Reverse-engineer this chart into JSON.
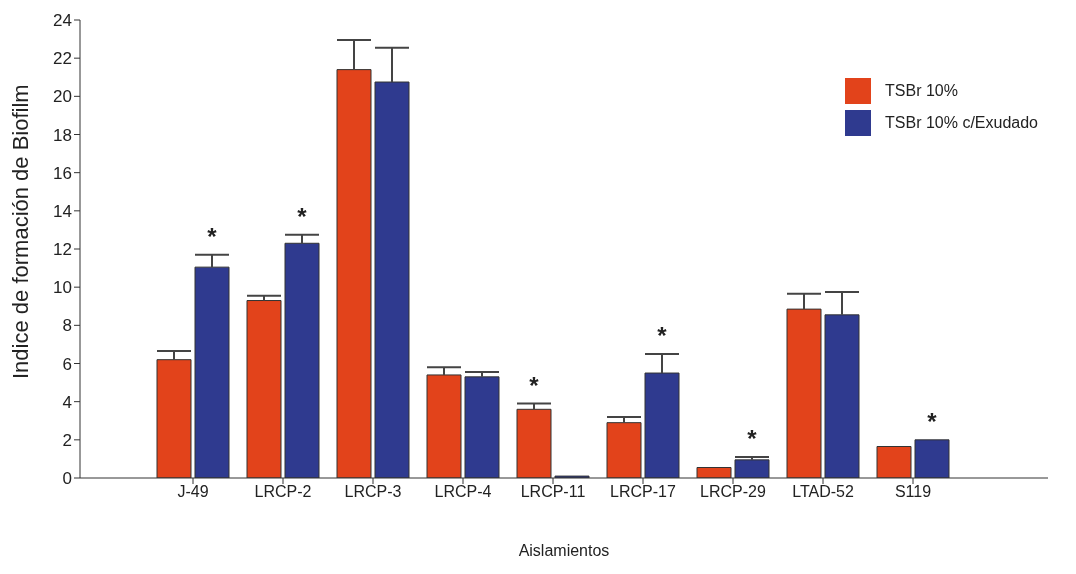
{
  "chart_data": {
    "type": "bar",
    "xlabel": "Aislamientos",
    "ylabel": "Indice de formación de Biofilm",
    "categories": [
      "J-49",
      "LRCP-2",
      "LRCP-3",
      "LRCP-4",
      "LRCP-11",
      "LRCP-17",
      "LRCP-29",
      "LTAD-52",
      "S119"
    ],
    "series": [
      {
        "name": "TSBr 10%",
        "color": "#e2431b",
        "values": [
          6.2,
          9.3,
          21.4,
          5.4,
          3.6,
          2.9,
          0.55,
          8.85,
          1.65
        ],
        "errors": [
          [
            6.2,
            6.65
          ],
          [
            9.3,
            9.55
          ],
          [
            21.4,
            22.95
          ],
          [
            5.4,
            5.8
          ],
          [
            3.6,
            3.9
          ],
          [
            2.9,
            3.2
          ],
          null,
          [
            8.85,
            9.65
          ],
          null
        ]
      },
      {
        "name": "TSBr 10% c/Exudado",
        "color": "#2f3a8f",
        "values": [
          11.05,
          12.3,
          20.75,
          5.3,
          0.1,
          5.5,
          0.95,
          8.55,
          2.0
        ],
        "errors": [
          [
            11.05,
            11.7
          ],
          [
            12.3,
            12.75
          ],
          [
            20.75,
            22.55
          ],
          [
            5.3,
            5.55
          ],
          null,
          [
            5.5,
            6.5
          ],
          [
            0.95,
            1.1
          ],
          [
            8.55,
            9.75
          ],
          null
        ]
      }
    ],
    "ylim": [
      0,
      24
    ],
    "yticks": [
      0,
      2,
      4,
      6,
      8,
      10,
      12,
      14,
      16,
      18,
      20,
      22,
      24
    ],
    "grid": false,
    "legend": "top right",
    "annotations": [
      {
        "text": "*",
        "x": "J-49",
        "y": 11.05
      },
      {
        "text": "*",
        "x": "LRCP-2",
        "y": 12.3
      },
      {
        "text": "*",
        "x": "LRCP-11",
        "y": 3.6
      },
      {
        "text": "*",
        "x": "LRCP-17",
        "y": 5.5
      },
      {
        "text": "*",
        "x": "LRCP-29",
        "y": 0.95
      },
      {
        "text": "*",
        "x": "S119",
        "y": 2.0
      }
    ]
  }
}
